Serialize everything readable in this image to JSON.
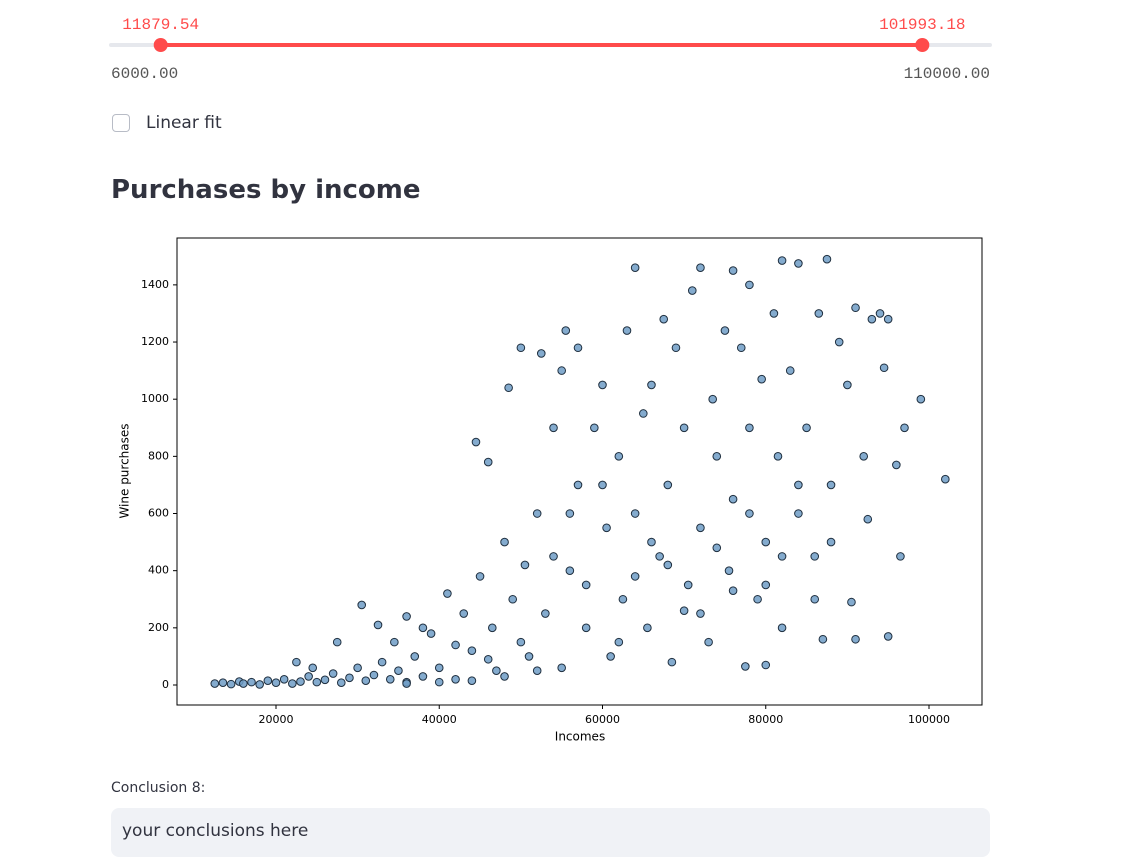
{
  "slider": {
    "low": 11879.54,
    "high": 101993.18,
    "min": {
      "value": 6000,
      "label": "6000.00"
    },
    "max": {
      "value": 110000,
      "label": "110000.00"
    }
  },
  "checkbox": {
    "label": "Linear fit",
    "checked": false
  },
  "heading": "Purchases by income",
  "chart_data": {
    "type": "scatter",
    "xlabel": "Incomes",
    "ylabel": "Wine purchases",
    "color": "#6f9cc6",
    "edgecolor": "#1f2f3f",
    "xlim": [
      7872,
      106493
    ],
    "ylim": [
      -70,
      1564
    ],
    "xticks": [
      20000,
      40000,
      60000,
      80000,
      100000
    ],
    "yticks": [
      0,
      200,
      400,
      600,
      800,
      1000,
      1200,
      1400
    ],
    "x": [
      12500,
      13500,
      14500,
      15500,
      16000,
      17000,
      18000,
      19000,
      20000,
      21000,
      22000,
      23000,
      24000,
      25000,
      26000,
      27000,
      28000,
      29000,
      30000,
      31000,
      32000,
      33000,
      34000,
      35000,
      36000,
      22500,
      24500,
      27500,
      30500,
      32500,
      34500,
      36000,
      37000,
      38000,
      39000,
      40000,
      41000,
      42000,
      43000,
      44000,
      45000,
      44500,
      46000,
      46500,
      47000,
      48000,
      48500,
      49000,
      50000,
      50500,
      51000,
      52000,
      52500,
      53000,
      54000,
      55000,
      55500,
      55000,
      56000,
      57000,
      57000,
      58000,
      59000,
      60000,
      60500,
      61000,
      62000,
      62500,
      63000,
      64000,
      64000,
      65000,
      65500,
      66000,
      67000,
      67500,
      68000,
      68500,
      69000,
      70000,
      70500,
      71000,
      72000,
      72000,
      73000,
      73500,
      74000,
      75000,
      75500,
      76000,
      76000,
      77000,
      77500,
      78000,
      78000,
      79000,
      79500,
      80000,
      80000,
      81000,
      81500,
      82000,
      82000,
      83000,
      84000,
      84000,
      85000,
      86000,
      86500,
      87000,
      87500,
      88000,
      89000,
      90000,
      90500,
      91000,
      91000,
      92000,
      92500,
      93000,
      94000,
      94500,
      95000,
      95000,
      96000,
      96500,
      97000,
      99000,
      102000,
      66000,
      70000,
      74000,
      78000,
      82000,
      86000,
      58000,
      62000,
      54000,
      50000,
      46000,
      42000,
      38000,
      60000,
      64000,
      68000,
      72000,
      76000,
      80000,
      84000,
      88000,
      56000,
      52000,
      48000,
      44000,
      40000,
      36000
    ],
    "values": [
      5,
      8,
      3,
      12,
      5,
      10,
      2,
      15,
      8,
      20,
      5,
      12,
      30,
      10,
      18,
      40,
      8,
      25,
      60,
      15,
      35,
      80,
      20,
      50,
      10,
      80,
      60,
      150,
      280,
      210,
      150,
      240,
      100,
      30,
      180,
      60,
      320,
      20,
      250,
      120,
      380,
      850,
      780,
      200,
      50,
      500,
      1040,
      300,
      1180,
      420,
      100,
      600,
      1160,
      250,
      900,
      1100,
      1240,
      60,
      400,
      1180,
      700,
      200,
      900,
      1050,
      550,
      100,
      800,
      300,
      1240,
      1460,
      600,
      950,
      200,
      1050,
      450,
      1280,
      700,
      80,
      1180,
      900,
      350,
      1380,
      1460,
      550,
      150,
      1000,
      800,
      1240,
      400,
      1450,
      650,
      1180,
      65,
      1400,
      900,
      300,
      1070,
      500,
      70,
      1300,
      800,
      1485,
      200,
      1100,
      1475,
      600,
      900,
      450,
      1300,
      160,
      1490,
      700,
      1200,
      1050,
      290,
      1320,
      160,
      800,
      580,
      1280,
      1300,
      1110,
      170,
      1280,
      770,
      450,
      900,
      1000,
      720,
      500,
      260,
      480,
      600,
      450,
      300,
      350,
      150,
      450,
      150,
      90,
      140,
      200,
      700,
      380,
      420,
      250,
      330,
      350,
      700,
      500,
      600,
      50,
      30,
      15,
      10,
      5
    ]
  },
  "text_input": {
    "label": "Conclusion 8:",
    "placeholder": "your conclusions here"
  }
}
